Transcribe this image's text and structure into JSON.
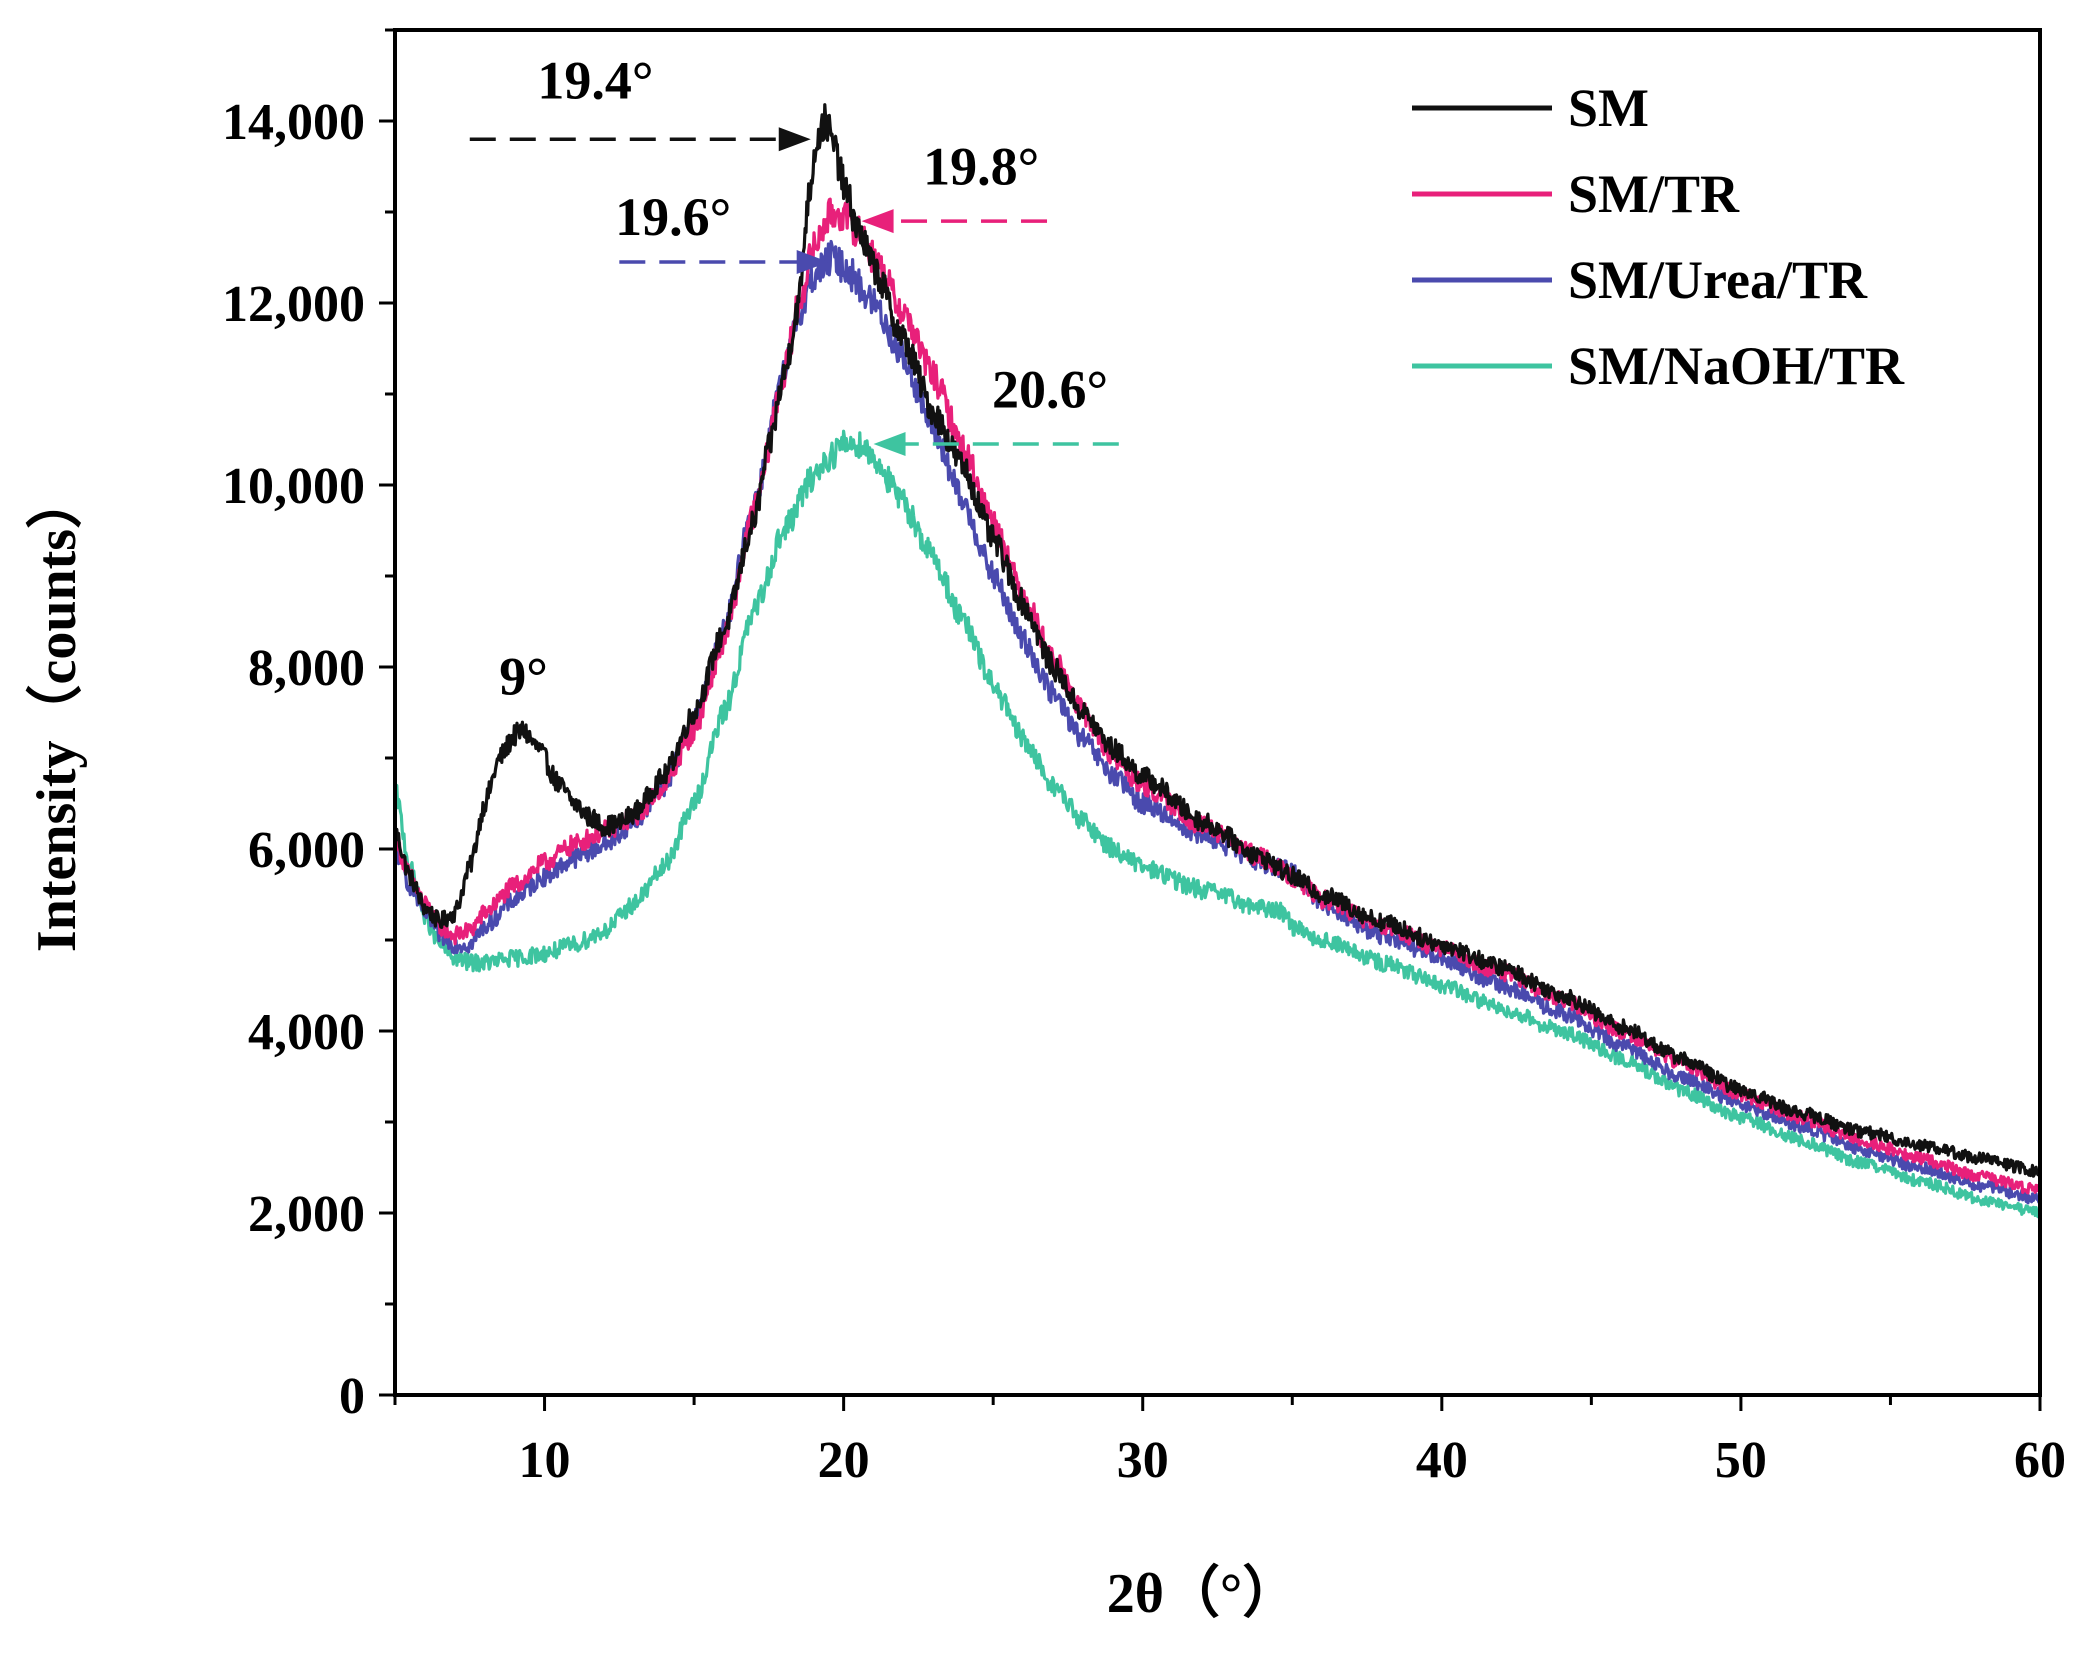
{
  "chart_data": {
    "type": "line",
    "title": "",
    "xlabel": "2θ（°）",
    "ylabel": "Intensity（counts）",
    "xlim": [
      5,
      60
    ],
    "ylim": [
      0,
      15000
    ],
    "xticks": [
      10,
      20,
      30,
      40,
      50,
      60
    ],
    "xtick_labels": [
      "10",
      "20",
      "30",
      "40",
      "50",
      "60"
    ],
    "yticks": [
      0,
      2000,
      4000,
      6000,
      8000,
      10000,
      12000,
      14000
    ],
    "ytick_labels": [
      "0",
      "2,000",
      "4,000",
      "6,000",
      "8,000",
      "10,000",
      "12,000",
      "14,000"
    ],
    "grid": false,
    "legend_position": "top-right",
    "series": [
      {
        "name": "SM",
        "color": "#111111",
        "x": [
          5,
          5.5,
          6,
          6.5,
          7,
          7.5,
          8,
          8.5,
          9,
          9.3,
          9.8,
          10.5,
          11,
          11.5,
          12,
          12.5,
          13,
          14,
          15,
          16,
          17,
          17.5,
          18,
          18.5,
          18.8,
          19.1,
          19.4,
          19.7,
          20,
          20.5,
          21,
          22,
          23,
          24,
          25,
          26,
          27,
          28,
          29,
          30,
          32,
          34,
          35,
          36,
          38,
          40,
          42,
          44,
          46,
          48,
          50,
          52,
          54,
          56,
          58,
          60
        ],
        "y": [
          6200,
          5700,
          5350,
          5200,
          5300,
          5800,
          6500,
          7000,
          7250,
          7300,
          7100,
          6700,
          6500,
          6350,
          6250,
          6280,
          6400,
          6800,
          7500,
          8400,
          9600,
          10400,
          11200,
          12000,
          13100,
          13800,
          14000,
          13700,
          13300,
          12800,
          12400,
          11600,
          10800,
          10200,
          9400,
          8700,
          8000,
          7500,
          7100,
          6800,
          6300,
          5900,
          5700,
          5500,
          5200,
          4950,
          4700,
          4400,
          4050,
          3700,
          3350,
          3100,
          2900,
          2750,
          2600,
          2450
        ]
      },
      {
        "name": "SM/TR",
        "color": "#e8207a",
        "x": [
          5,
          5.5,
          6,
          6.5,
          7,
          7.5,
          8,
          9,
          10,
          11,
          12,
          13,
          14,
          15,
          16,
          17,
          18,
          18.5,
          19,
          19.5,
          19.8,
          20.5,
          21,
          22,
          23,
          24,
          25,
          26,
          27,
          28,
          29,
          30,
          32,
          34,
          35,
          36,
          38,
          40,
          42,
          44,
          46,
          48,
          50,
          52,
          54,
          56,
          58,
          60
        ],
        "y": [
          6100,
          5700,
          5400,
          5150,
          5050,
          5100,
          5300,
          5600,
          5850,
          6050,
          6200,
          6350,
          6700,
          7300,
          8300,
          9700,
          11200,
          12000,
          12600,
          12950,
          13000,
          12800,
          12500,
          11900,
          11200,
          10400,
          9600,
          8800,
          8100,
          7500,
          7000,
          6700,
          6250,
          5900,
          5700,
          5450,
          5150,
          4900,
          4650,
          4350,
          4000,
          3650,
          3300,
          3050,
          2800,
          2600,
          2400,
          2250
        ]
      },
      {
        "name": "SM/Urea/TR",
        "color": "#4a4aae",
        "x": [
          5,
          5.5,
          6,
          6.5,
          7,
          7.5,
          8,
          9,
          10,
          11,
          12,
          13,
          14,
          15,
          16,
          17,
          18,
          18.5,
          19,
          19.6,
          20,
          21,
          22,
          23,
          24,
          25,
          26,
          27,
          28,
          29,
          30,
          32,
          34,
          35,
          36,
          38,
          40,
          42,
          44,
          46,
          48,
          50,
          52,
          54,
          56,
          58,
          60
        ],
        "y": [
          6000,
          5600,
          5300,
          5050,
          4950,
          4950,
          5150,
          5450,
          5700,
          5900,
          6050,
          6300,
          6700,
          7400,
          8400,
          9800,
          11200,
          11900,
          12300,
          12500,
          12400,
          12000,
          11400,
          10600,
          9800,
          9000,
          8300,
          7700,
          7200,
          6800,
          6500,
          6150,
          5850,
          5750,
          5400,
          5050,
          4800,
          4500,
          4200,
          3850,
          3500,
          3200,
          2950,
          2700,
          2500,
          2300,
          2150
        ]
      },
      {
        "name": "SM/NaOH/TR",
        "color": "#3ec4a0",
        "x": [
          5,
          5.5,
          6,
          6.5,
          7,
          7.5,
          8,
          9,
          10,
          11,
          12,
          13,
          14,
          15,
          16,
          17,
          18,
          19,
          19.5,
          20,
          20.6,
          21,
          22,
          23,
          24,
          25,
          26,
          27,
          28,
          29,
          30,
          32,
          34,
          34.8,
          35,
          36,
          38,
          40,
          42,
          44,
          46,
          48,
          50,
          52,
          54,
          56,
          58,
          60
        ],
        "y": [
          6650,
          5800,
          5250,
          4950,
          4800,
          4750,
          4750,
          4800,
          4850,
          4950,
          5100,
          5400,
          5800,
          6500,
          7500,
          8600,
          9500,
          10100,
          10300,
          10450,
          10450,
          10300,
          9800,
          9200,
          8500,
          7800,
          7200,
          6700,
          6300,
          6000,
          5800,
          5550,
          5350,
          5300,
          5150,
          5000,
          4750,
          4500,
          4250,
          4000,
          3700,
          3350,
          3050,
          2800,
          2550,
          2350,
          2150,
          2000
        ]
      }
    ],
    "annotations": [
      {
        "text": "9°",
        "x": 9.3,
        "y": 7700
      },
      {
        "text": "19.4°",
        "x": 11.7,
        "y": 14250,
        "arrow_from": 7.5,
        "arrow_to": 18.9,
        "arrow_y": 13800,
        "color": "#111111"
      },
      {
        "text": "19.8°",
        "x": 24.6,
        "y": 13300,
        "arrow_from": 26.8,
        "arrow_to": 20.6,
        "arrow_y": 12900,
        "color": "#e8207a"
      },
      {
        "text": "19.6°",
        "x": 14.3,
        "y": 12750,
        "arrow_from": 12.5,
        "arrow_to": 19.5,
        "arrow_y": 12450,
        "color": "#4a4aae"
      },
      {
        "text": "20.6°",
        "x": 26.9,
        "y": 10850,
        "arrow_from": 29.2,
        "arrow_to": 21.0,
        "arrow_y": 10450,
        "color": "#3ec4a0"
      }
    ]
  }
}
